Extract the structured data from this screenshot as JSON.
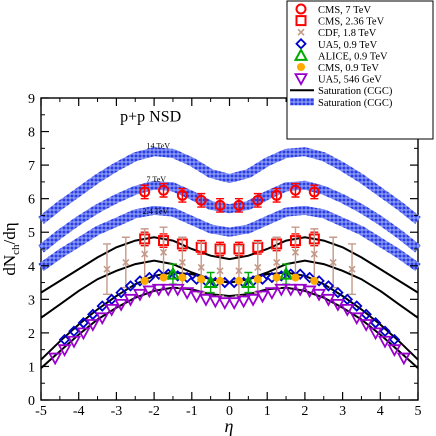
{
  "chart_data": {
    "type": "scatter",
    "title": "",
    "xlabel": "η",
    "ylabel": "dN",
    "ylabel_sub": "ch",
    "ylabel_tail": "/dη",
    "xlim": [
      -5,
      5
    ],
    "ylim": [
      0,
      9
    ],
    "xticks": [
      -5,
      -4,
      -3,
      -2,
      -1,
      0,
      1,
      2,
      3,
      4,
      5
    ],
    "yticks": [
      0,
      1,
      2,
      3,
      4,
      5,
      6,
      7,
      8,
      9
    ],
    "grid": false,
    "legend_position": "top-right",
    "annotations": [
      {
        "text": "p+p NSD",
        "x": -2.9,
        "y": 8.3,
        "size": "large"
      },
      {
        "text": "14 TeV",
        "x": -2.2,
        "y": 7.5,
        "size": "small"
      },
      {
        "text": "7 TeV",
        "x": -2.2,
        "y": 6.5,
        "size": "small"
      },
      {
        "text": "2.4 TeV",
        "x": -2.3,
        "y": 5.55,
        "size": "small"
      }
    ],
    "series": [
      {
        "name": "CMS, 7 TeV",
        "marker": "circle",
        "color": "#ff0000",
        "x": [
          -2.25,
          -1.75,
          -1.25,
          -0.75,
          -0.25,
          0.25,
          0.75,
          1.25,
          1.75,
          2.25
        ],
        "y": [
          6.2,
          6.25,
          6.1,
          5.95,
          5.8,
          5.8,
          5.95,
          6.1,
          6.25,
          6.2
        ],
        "err": [
          0.2,
          0.2,
          0.2,
          0.2,
          0.2,
          0.2,
          0.2,
          0.2,
          0.2,
          0.2
        ]
      },
      {
        "name": "CMS,  2.36 TeV",
        "marker": "square",
        "color": "#ff0000",
        "x": [
          -2.25,
          -1.75,
          -1.25,
          -0.75,
          -0.25,
          0.25,
          0.75,
          1.25,
          1.75,
          2.25
        ],
        "y": [
          4.8,
          4.75,
          4.65,
          4.55,
          4.5,
          4.5,
          4.55,
          4.65,
          4.75,
          4.8
        ],
        "err": [
          0.2,
          0.2,
          0.2,
          0.2,
          0.2,
          0.2,
          0.2,
          0.2,
          0.2,
          0.2
        ]
      },
      {
        "name": "CDF, 1.8 TeV",
        "marker": "cross",
        "color": "#c49a8a",
        "x": [
          -3.25,
          -2.75,
          -2.25,
          -1.75,
          -1.25,
          -0.75,
          -0.25,
          0.25,
          0.75,
          1.25,
          1.75,
          2.25,
          2.75,
          3.25
        ],
        "y": [
          3.9,
          4.1,
          4.35,
          4.4,
          4.1,
          3.95,
          3.85,
          3.85,
          3.95,
          4.1,
          4.4,
          4.35,
          4.1,
          3.9
        ],
        "err": [
          0.75,
          0.75,
          0.75,
          0.75,
          0.75,
          0.75,
          0.75,
          0.75,
          0.75,
          0.75,
          0.75,
          0.75,
          0.75,
          0.75
        ]
      },
      {
        "name": "UA5, 0.9 TeV",
        "marker": "diamond",
        "color": "#0000cc",
        "x": [
          -4.375,
          -4.125,
          -3.875,
          -3.625,
          -3.375,
          -3.125,
          -2.875,
          -2.625,
          -2.375,
          -2.125,
          -1.875,
          -1.625,
          -1.375,
          -1.125,
          -0.875,
          -0.625,
          -0.375,
          -0.125,
          0.125,
          0.375,
          0.625,
          0.875,
          1.125,
          1.375,
          1.625,
          1.875,
          2.125,
          2.375,
          2.625,
          2.875,
          3.125,
          3.375,
          3.625,
          3.875,
          4.125,
          4.375
        ],
        "y": [
          1.8,
          2.05,
          2.3,
          2.55,
          2.8,
          3.0,
          3.2,
          3.4,
          3.55,
          3.65,
          3.75,
          3.75,
          3.7,
          3.65,
          3.6,
          3.55,
          3.5,
          3.5,
          3.5,
          3.5,
          3.55,
          3.6,
          3.65,
          3.7,
          3.75,
          3.75,
          3.65,
          3.55,
          3.4,
          3.2,
          3.0,
          2.8,
          2.55,
          2.3,
          2.05,
          1.8
        ],
        "err": []
      },
      {
        "name": "ALICE, 0.9 TeV",
        "marker": "triangle",
        "color": "#00aa00",
        "x": [
          -1.5,
          -0.5,
          0.5,
          1.5
        ],
        "y": [
          3.75,
          3.5,
          3.5,
          3.75
        ],
        "err": [
          0.3,
          0.3,
          0.3,
          0.3
        ]
      },
      {
        "name": "CMS, 0.9 TeV",
        "marker": "filled-circle",
        "color": "#ffaa00",
        "x": [
          -2.25,
          -1.75,
          -1.25,
          -0.75,
          -0.25,
          0.25,
          0.75,
          1.25,
          1.75,
          2.25
        ],
        "y": [
          3.55,
          3.65,
          3.65,
          3.6,
          3.55,
          3.55,
          3.6,
          3.65,
          3.65,
          3.55
        ],
        "err": []
      },
      {
        "name": "UA5, 546 GeV",
        "marker": "down-triangle",
        "color": "#9900cc",
        "x": [
          -4.625,
          -4.375,
          -4.125,
          -3.875,
          -3.625,
          -3.375,
          -3.125,
          -2.875,
          -2.625,
          -2.375,
          -2.125,
          -1.875,
          -1.625,
          -1.375,
          -1.125,
          -0.875,
          -0.625,
          -0.375,
          -0.125,
          0.125,
          0.375,
          0.625,
          0.875,
          1.125,
          1.375,
          1.625,
          1.875,
          2.125,
          2.375,
          2.625,
          2.875,
          3.125,
          3.375,
          3.625,
          3.875,
          4.125,
          4.375,
          4.625
        ],
        "y": [
          1.25,
          1.5,
          1.75,
          2.0,
          2.25,
          2.45,
          2.7,
          2.85,
          3.0,
          3.15,
          3.25,
          3.3,
          3.3,
          3.3,
          3.2,
          3.1,
          3.0,
          2.95,
          2.9,
          2.9,
          2.95,
          3.0,
          3.1,
          3.2,
          3.3,
          3.3,
          3.3,
          3.25,
          3.15,
          3.0,
          2.85,
          2.7,
          2.45,
          2.25,
          2.0,
          1.75,
          1.5,
          1.25
        ],
        "err": []
      }
    ],
    "curves": [
      {
        "name": "Saturation (CGC)",
        "style": "line",
        "color": "#000000",
        "members": [
          {
            "x": [
              -5,
              -4.5,
              -4,
              -3.5,
              -3,
              -2.5,
              -2,
              -1.5,
              -1,
              -0.5,
              0,
              0.5,
              1,
              1.5,
              2,
              2.5,
              3,
              3.5,
              4,
              4.5,
              5
            ],
            "y": [
              3.2,
              3.55,
              3.9,
              4.25,
              4.55,
              4.75,
              4.85,
              4.75,
              4.5,
              4.3,
              4.2,
              4.3,
              4.5,
              4.75,
              4.85,
              4.75,
              4.55,
              4.25,
              3.9,
              3.55,
              3.2
            ]
          },
          {
            "x": [
              -5,
              -4.5,
              -4,
              -3.5,
              -3,
              -2.5,
              -2,
              -1.5,
              -1,
              -0.5,
              0,
              0.5,
              1,
              1.5,
              2,
              2.5,
              3,
              3.5,
              4,
              4.5,
              5
            ],
            "y": [
              2.45,
              2.85,
              3.25,
              3.6,
              3.85,
              4.05,
              4.15,
              4.05,
              3.8,
              3.6,
              3.5,
              3.6,
              3.8,
              4.05,
              4.15,
              4.05,
              3.85,
              3.6,
              3.25,
              2.85,
              2.45
            ]
          },
          {
            "x": [
              -5,
              -4.5,
              -4,
              -3.5,
              -3,
              -2.5,
              -2,
              -1.5,
              -1,
              -0.5,
              0,
              0.5,
              1,
              1.5,
              2,
              2.5,
              3,
              3.5,
              4,
              4.5,
              5
            ],
            "y": [
              1.2,
              1.75,
              2.25,
              2.7,
              3.1,
              3.45,
              3.7,
              3.8,
              3.75,
              3.6,
              3.5,
              3.6,
              3.75,
              3.8,
              3.7,
              3.45,
              3.1,
              2.7,
              2.25,
              1.75,
              1.2
            ]
          },
          {
            "x": [
              -5,
              -4.5,
              -4,
              -3.5,
              -3,
              -2.5,
              -2,
              -1.5,
              -1,
              -0.5,
              0,
              0.5,
              1,
              1.5,
              2,
              2.5,
              3,
              3.5,
              4,
              4.5,
              5
            ],
            "y": [
              0.95,
              1.45,
              1.95,
              2.4,
              2.75,
              3.05,
              3.25,
              3.35,
              3.3,
              3.15,
              3.1,
              3.15,
              3.3,
              3.35,
              3.25,
              3.05,
              2.75,
              2.4,
              1.95,
              1.45,
              0.95
            ]
          }
        ]
      },
      {
        "name": "Saturation (CGC)",
        "style": "band",
        "color": "#2a3ee8",
        "members": [
          {
            "x": [
              -5,
              -4.5,
              -4,
              -3.5,
              -3,
              -2.5,
              -2,
              -1.5,
              -1,
              -0.5,
              0,
              0.5,
              1,
              1.5,
              2,
              2.5,
              3,
              3.5,
              4,
              4.5,
              5
            ],
            "y": [
              5.35,
              5.8,
              6.2,
              6.6,
              6.95,
              7.25,
              7.4,
              7.35,
              7.1,
              6.75,
              6.6,
              6.75,
              7.1,
              7.35,
              7.4,
              7.25,
              6.95,
              6.6,
              6.2,
              5.8,
              5.35
            ]
          },
          {
            "x": [
              -5,
              -4.5,
              -4,
              -3.5,
              -3,
              -2.5,
              -2,
              -1.5,
              -1,
              -0.5,
              0,
              0.5,
              1,
              1.5,
              2,
              2.5,
              3,
              3.5,
              4,
              4.5,
              5
            ],
            "y": [
              4.5,
              4.95,
              5.35,
              5.7,
              6.0,
              6.25,
              6.4,
              6.35,
              6.1,
              5.8,
              5.7,
              5.8,
              6.1,
              6.35,
              6.4,
              6.25,
              6.0,
              5.7,
              5.35,
              4.95,
              4.5
            ]
          },
          {
            "x": [
              -5,
              -4.5,
              -4,
              -3.5,
              -3,
              -2.5,
              -2,
              -1.5,
              -1,
              -0.5,
              0,
              0.5,
              1,
              1.5,
              2,
              2.5,
              3,
              3.5,
              4,
              4.5,
              5
            ],
            "y": [
              3.95,
              4.35,
              4.7,
              5.05,
              5.3,
              5.55,
              5.65,
              5.6,
              5.35,
              5.1,
              5.0,
              5.1,
              5.35,
              5.6,
              5.65,
              5.55,
              5.3,
              5.05,
              4.7,
              4.35,
              3.95
            ]
          }
        ]
      }
    ]
  }
}
